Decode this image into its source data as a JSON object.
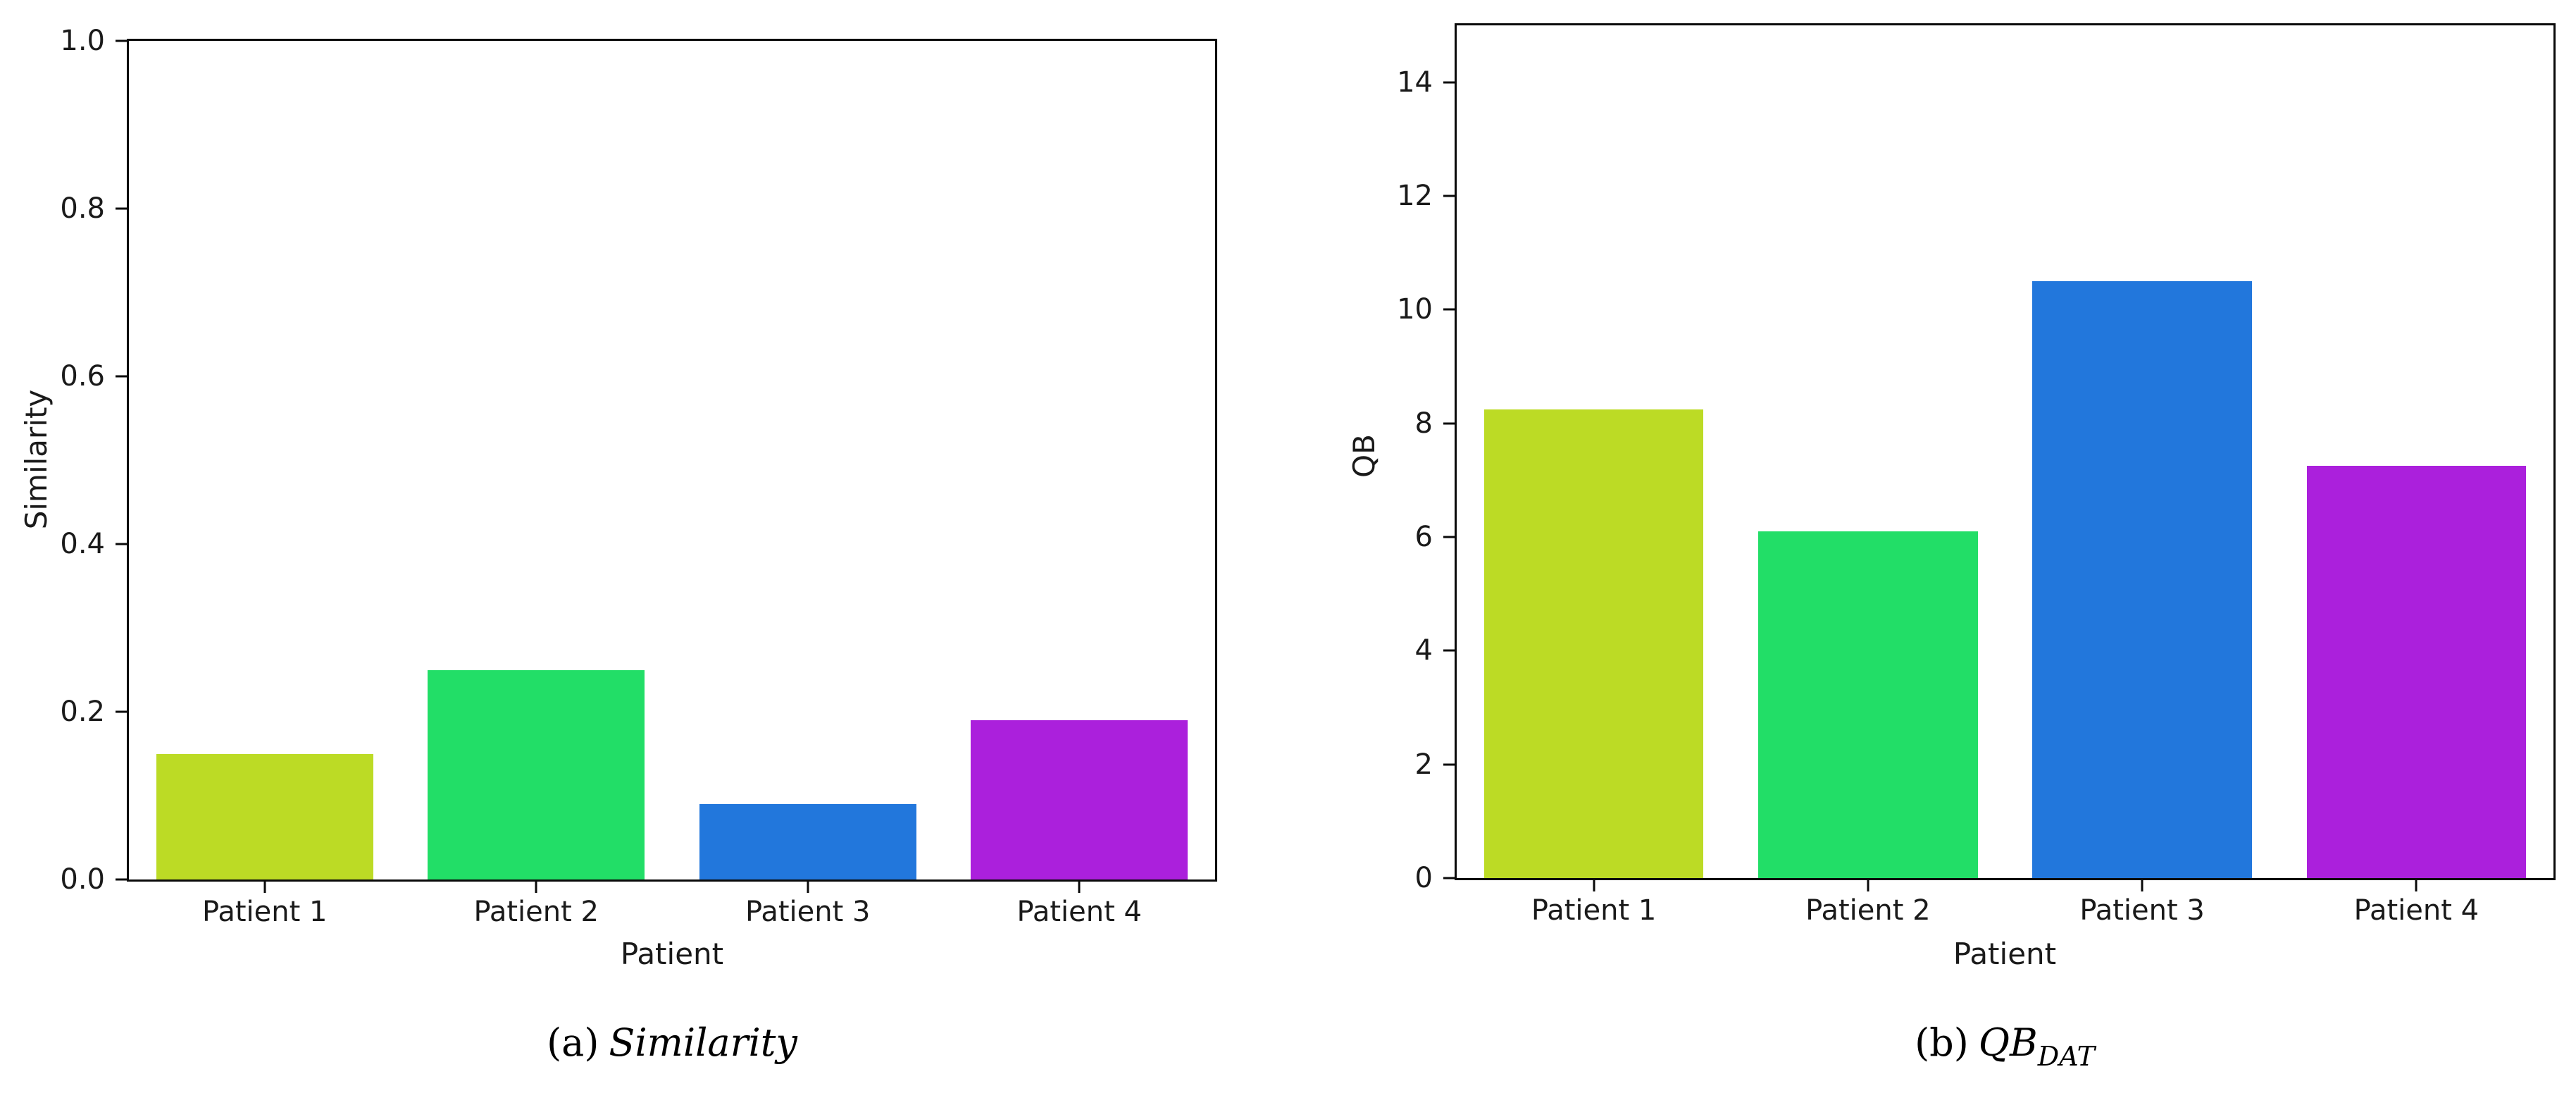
{
  "figure": {
    "background": "#ffffff",
    "text_color": "#1a1a1a"
  },
  "chart_data": [
    {
      "id": "similarity",
      "type": "bar",
      "title": "",
      "categories": [
        "Patient 1",
        "Patient 2",
        "Patient 3",
        "Patient 4"
      ],
      "values": [
        0.15,
        0.25,
        0.09,
        0.19
      ],
      "bar_colors": [
        "#bcdb25",
        "#22de67",
        "#2277dc",
        "#ab20dc"
      ],
      "xlabel": "Patient",
      "ylabel": "Similarity",
      "ylim": [
        0,
        1.0
      ],
      "ytick_labels": [
        "0.0",
        "0.2",
        "0.4",
        "0.6",
        "0.8",
        "1.0"
      ],
      "ytick_values": [
        0,
        0.2,
        0.4,
        0.6,
        0.8,
        1.0
      ],
      "bar_width_fraction": 0.8,
      "grid": "off",
      "legend": "none",
      "caption": {
        "prefix": "(a)",
        "label": "Similarity",
        "sub": ""
      }
    },
    {
      "id": "qb-dat",
      "type": "bar",
      "title": "",
      "categories": [
        "Patient 1",
        "Patient 2",
        "Patient 3",
        "Patient 4"
      ],
      "values": [
        8.25,
        6.1,
        10.5,
        7.25
      ],
      "bar_colors": [
        "#bcdb25",
        "#22de67",
        "#2277dc",
        "#ab20dc"
      ],
      "xlabel": "Patient",
      "ylabel": "QB",
      "ylim": [
        0,
        15
      ],
      "ytick_labels": [
        "0",
        "2",
        "4",
        "6",
        "8",
        "10",
        "12",
        "14"
      ],
      "ytick_values": [
        0,
        2,
        4,
        6,
        8,
        10,
        12,
        14
      ],
      "bar_width_fraction": 0.8,
      "grid": "off",
      "legend": "none",
      "caption": {
        "prefix": "(b)",
        "label": "QB",
        "sub": "DAT"
      }
    }
  ]
}
